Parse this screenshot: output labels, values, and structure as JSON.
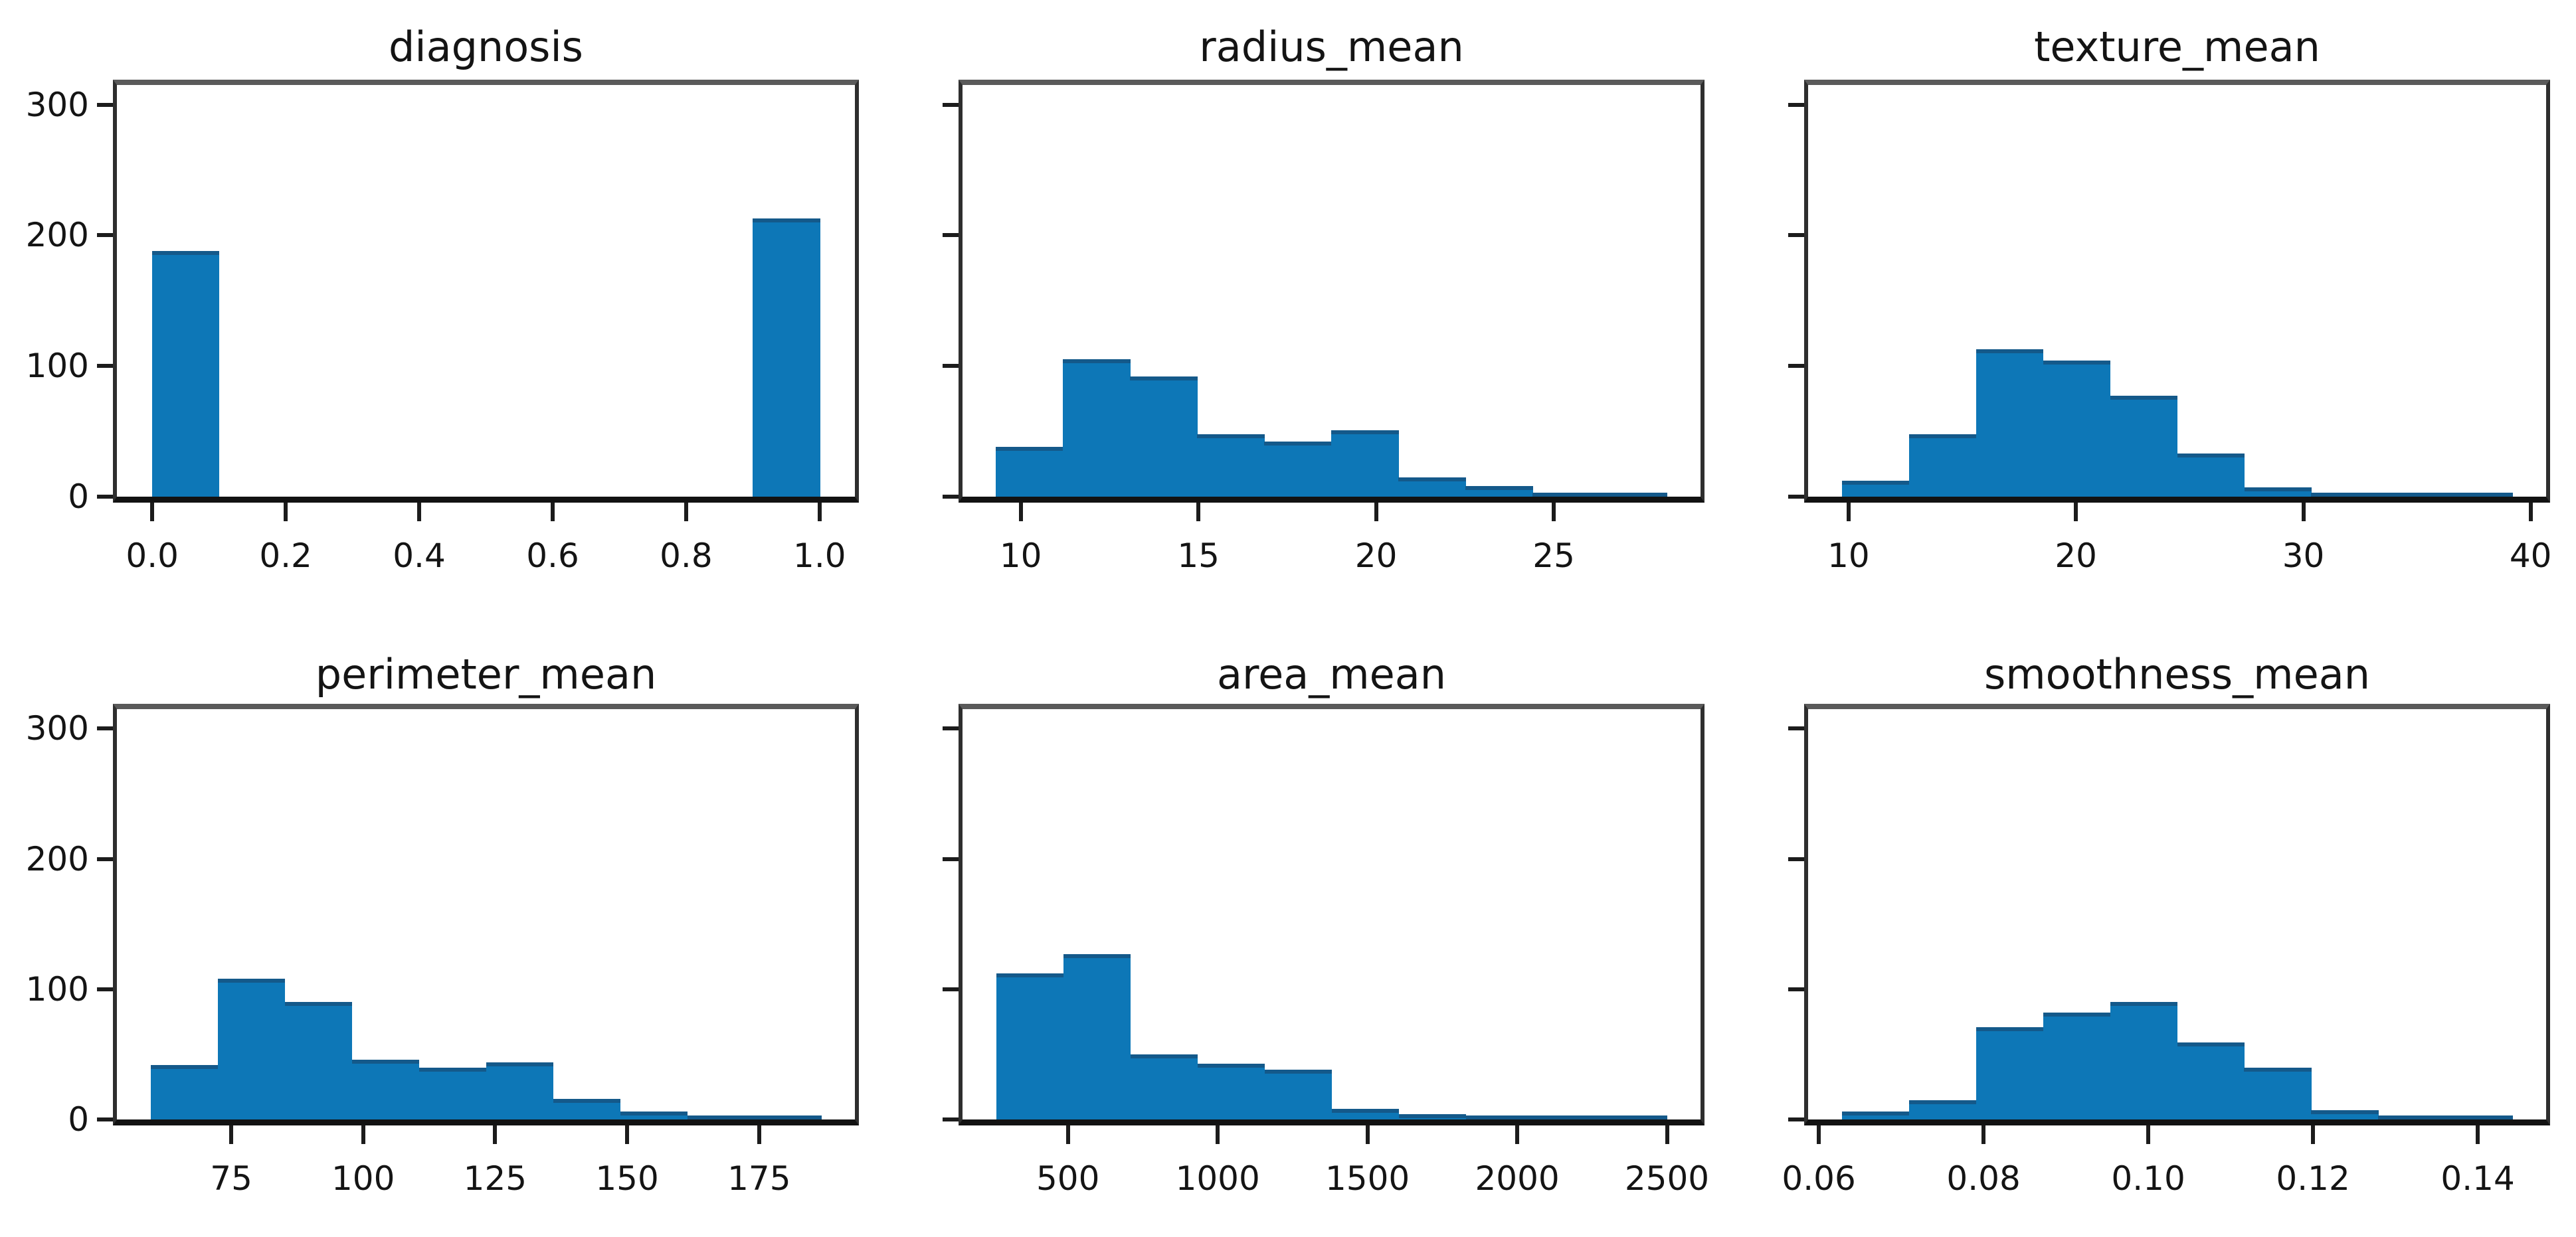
{
  "figure": {
    "background": "#ffffff",
    "bar_color": "#0d77b7",
    "bar_edge_color": "#14598a",
    "spine_color": "#2e2e2e",
    "text_color": "#141414",
    "layout": "2x3 grid of histograms, shared y-axis",
    "shared_ylim": [
      0,
      315
    ],
    "shared_yticks": [
      {
        "v": 0,
        "label": "0"
      },
      {
        "v": 100,
        "label": "100"
      },
      {
        "v": 200,
        "label": "200"
      },
      {
        "v": 300,
        "label": "300"
      }
    ]
  },
  "chart_data": [
    {
      "type": "histogram",
      "title": "diagnosis",
      "bin_start": 0.0,
      "bin_width": 0.1,
      "values": [
        188,
        0,
        0,
        0,
        0,
        0,
        0,
        0,
        0,
        213
      ],
      "xlim": [
        -0.053,
        1.053
      ],
      "ylim": [
        0,
        315
      ],
      "grid": false,
      "xticks": [
        {
          "v": 0.0,
          "label": "0.0"
        },
        {
          "v": 0.2,
          "label": "0.2"
        },
        {
          "v": 0.4,
          "label": "0.4"
        },
        {
          "v": 0.6,
          "label": "0.6"
        },
        {
          "v": 0.8,
          "label": "0.8"
        },
        {
          "v": 1.0,
          "label": "1.0"
        }
      ],
      "show_y_labels": true
    },
    {
      "type": "histogram",
      "title": "radius_mean",
      "bin_start": 9.3,
      "bin_width": 1.888,
      "values": [
        38,
        105,
        92,
        48,
        42,
        51,
        15,
        8,
        3,
        2
      ],
      "xlim": [
        8.36,
        29.13
      ],
      "ylim": [
        0,
        315
      ],
      "grid": false,
      "xticks": [
        {
          "v": 10,
          "label": "10"
        },
        {
          "v": 15,
          "label": "15"
        },
        {
          "v": 20,
          "label": "20"
        },
        {
          "v": 25,
          "label": "25"
        }
      ],
      "show_y_labels": false
    },
    {
      "type": "histogram",
      "title": "texture_mean",
      "bin_start": 9.7,
      "bin_width": 2.95,
      "values": [
        12,
        48,
        113,
        104,
        77,
        33,
        7,
        2,
        1,
        2
      ],
      "xlim": [
        8.22,
        40.68
      ],
      "ylim": [
        0,
        315
      ],
      "grid": false,
      "xticks": [
        {
          "v": 10,
          "label": "10"
        },
        {
          "v": 20,
          "label": "20"
        },
        {
          "v": 30,
          "label": "30"
        },
        {
          "v": 40,
          "label": "40"
        }
      ],
      "show_y_labels": false
    },
    {
      "type": "histogram",
      "title": "perimeter_mean",
      "bin_start": 59.7,
      "bin_width": 12.71,
      "values": [
        42,
        108,
        90,
        46,
        40,
        44,
        16,
        6,
        2,
        2
      ],
      "xlim": [
        53.35,
        193.15
      ],
      "ylim": [
        0,
        315
      ],
      "grid": false,
      "xticks": [
        {
          "v": 75,
          "label": "75"
        },
        {
          "v": 100,
          "label": "100"
        },
        {
          "v": 125,
          "label": "125"
        },
        {
          "v": 150,
          "label": "150"
        },
        {
          "v": 175,
          "label": "175"
        }
      ],
      "show_y_labels": true
    },
    {
      "type": "histogram",
      "title": "area_mean",
      "bin_start": 260,
      "bin_width": 224,
      "values": [
        112,
        127,
        50,
        43,
        38,
        8,
        4,
        2,
        1,
        2
      ],
      "xlim": [
        148,
        2612
      ],
      "ylim": [
        0,
        315
      ],
      "grid": false,
      "xticks": [
        {
          "v": 500,
          "label": "500"
        },
        {
          "v": 1000,
          "label": "1000"
        },
        {
          "v": 1500,
          "label": "1500"
        },
        {
          "v": 2000,
          "label": "2000"
        },
        {
          "v": 2500,
          "label": "2500"
        }
      ],
      "show_y_labels": false
    },
    {
      "type": "histogram",
      "title": "smoothness_mean",
      "bin_start": 0.0628,
      "bin_width": 0.00814,
      "values": [
        6,
        15,
        71,
        82,
        90,
        59,
        40,
        7,
        1,
        2
      ],
      "xlim": [
        0.0587,
        0.1483
      ],
      "ylim": [
        0,
        315
      ],
      "grid": false,
      "xticks": [
        {
          "v": 0.06,
          "label": "0.06"
        },
        {
          "v": 0.08,
          "label": "0.08"
        },
        {
          "v": 0.1,
          "label": "0.10"
        },
        {
          "v": 0.12,
          "label": "0.12"
        },
        {
          "v": 0.14,
          "label": "0.14"
        }
      ],
      "show_y_labels": false
    }
  ]
}
